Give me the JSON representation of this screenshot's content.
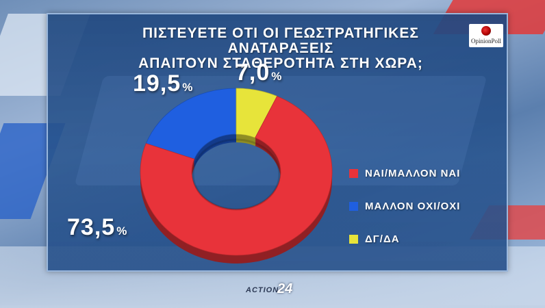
{
  "title_line1": "ΠΙΣΤΕΥΕΤΕ ΟΤΙ ΟΙ ΓΕΩΣΤΡΑΤΗΓΙΚΕΣ ΑΝΑΤΑΡΑΞΕΙΣ",
  "title_line2": "ΑΠΑΙΤΟΥΝ ΣΤΑΘΕΡΟΤΗΤΑ ΣΤΗ ΧΩΡΑ;",
  "poll_logo": "OpinionPoll",
  "footer_brand_word": "ACTION",
  "footer_brand_num": "24",
  "percent_sign": "%",
  "chart_data": {
    "type": "pie",
    "style": "donut",
    "categories": [
      "ΝΑΙ/ΜΑΛΛΟΝ ΝΑΙ",
      "ΜΑΛΛΟΝ ΟΧΙ/ΟΧΙ",
      "ΔΓ/ΔΑ"
    ],
    "values": [
      73.5,
      19.5,
      7.0
    ],
    "value_labels": [
      "73,5",
      "19,5",
      "7,0"
    ],
    "colors": [
      "#e8333a",
      "#1f5fe0",
      "#e7e43a"
    ],
    "legend_position": "right"
  }
}
